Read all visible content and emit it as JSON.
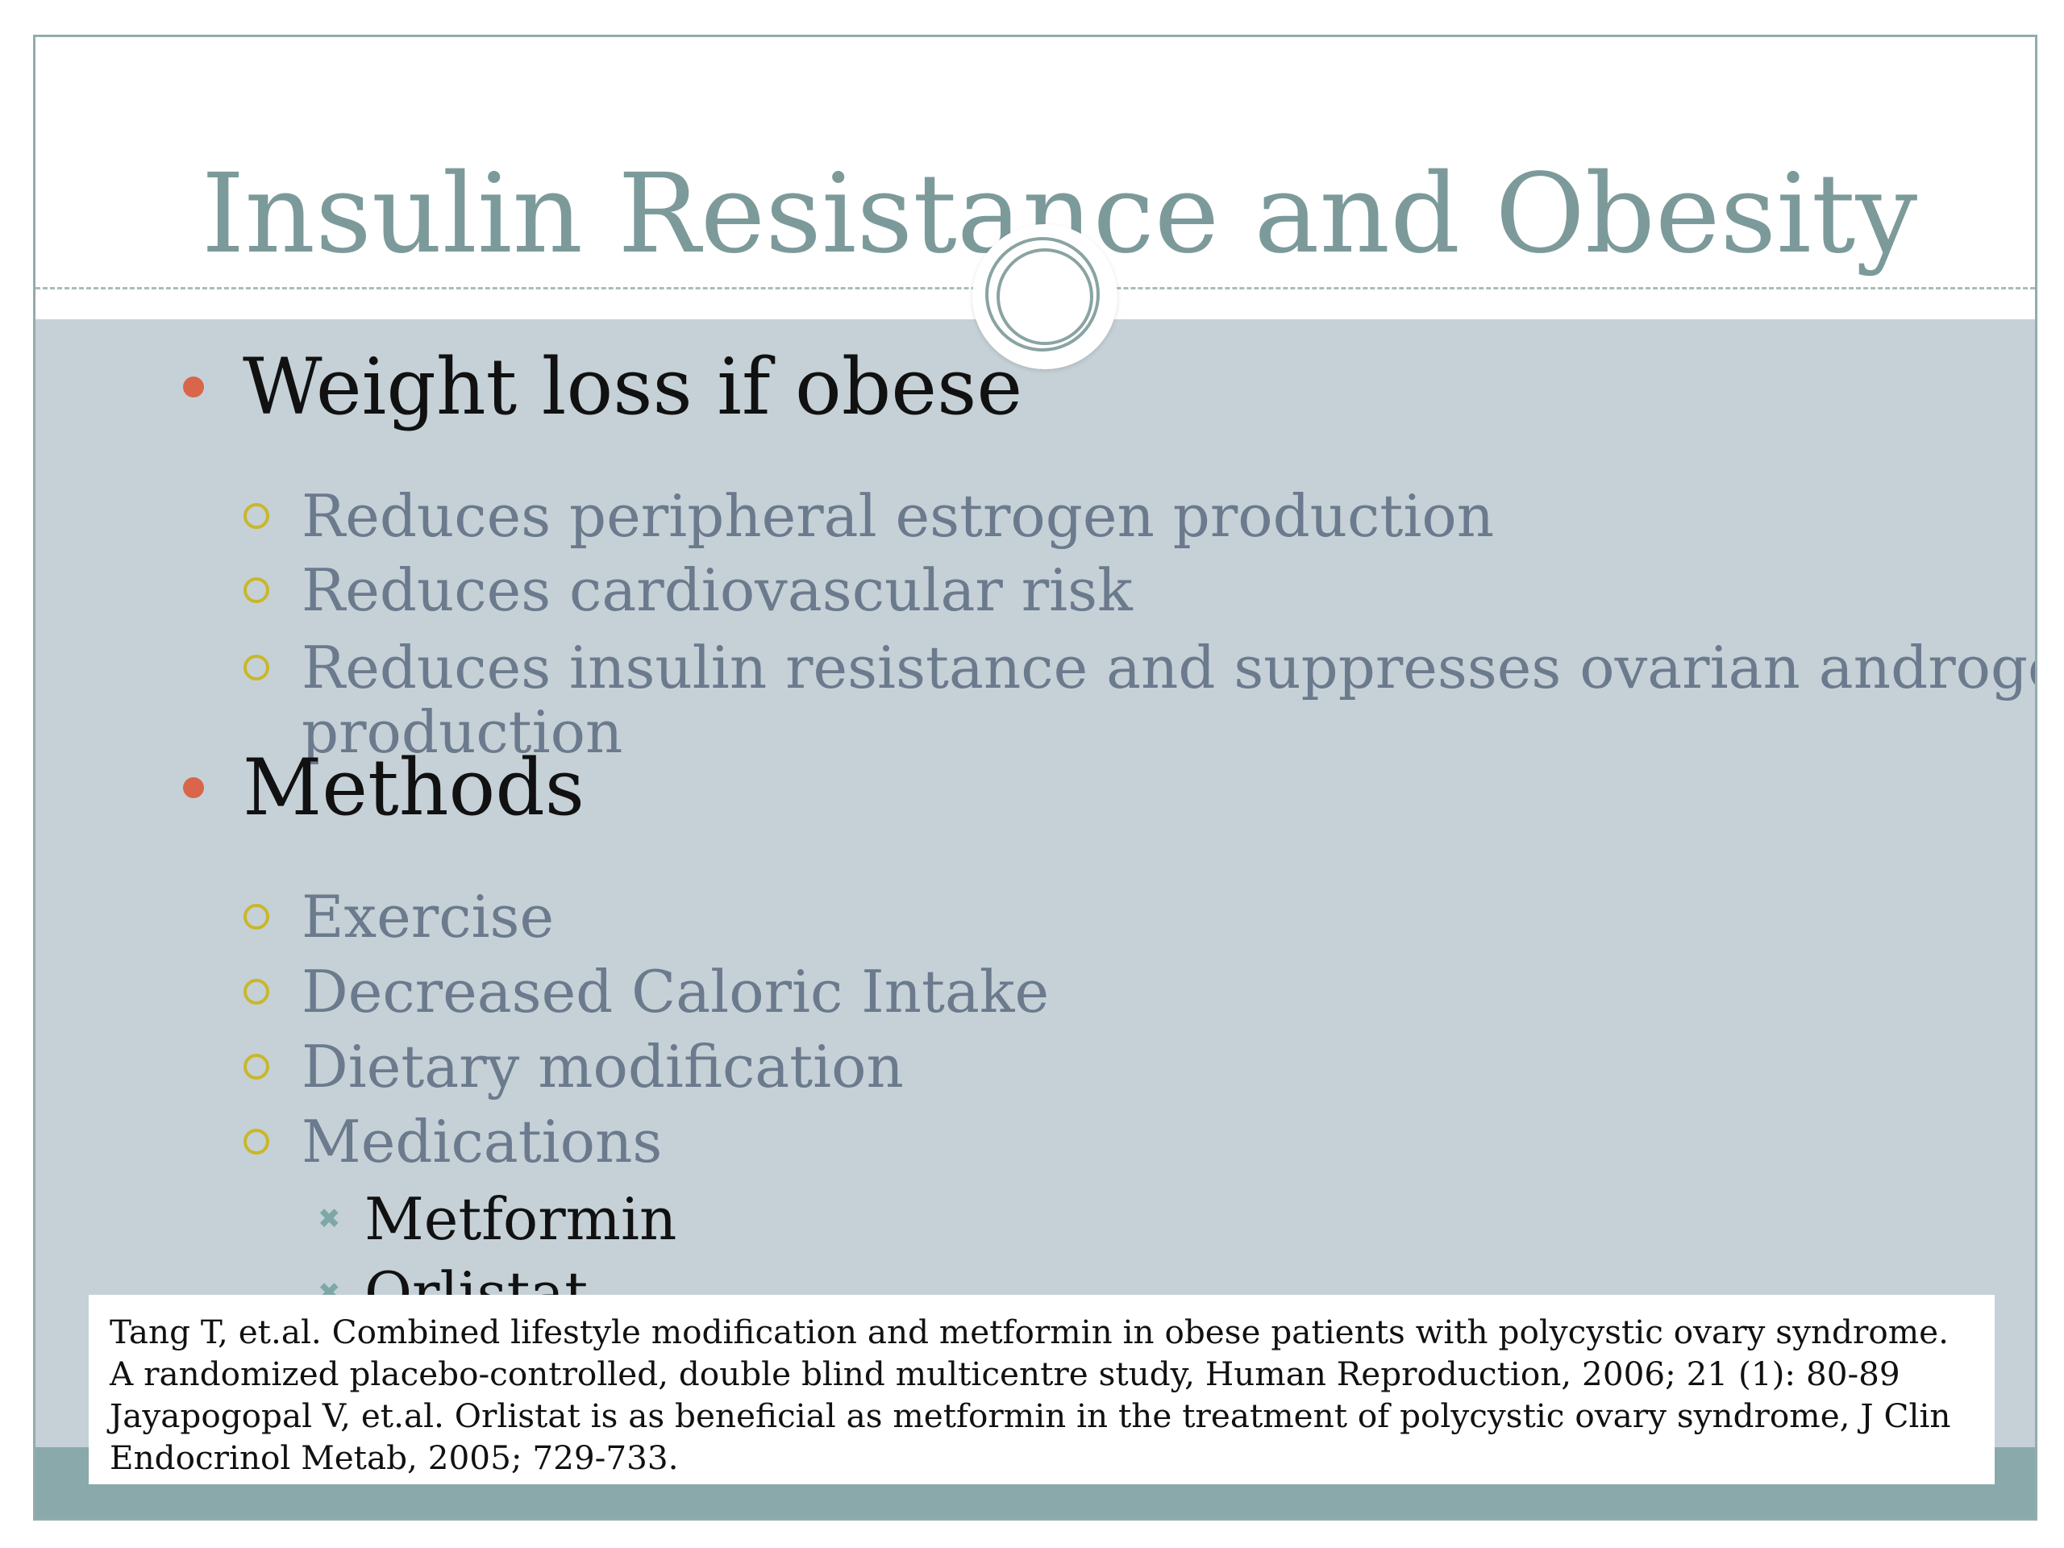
{
  "slide": {
    "title": "Insulin Resistance and Obesity",
    "bullets": [
      {
        "text": "Weight loss if obese",
        "sub": [
          "Reduces peripheral estrogen production",
          "Reduces cardiovascular risk",
          "Reduces insulin resistance and suppresses ovarian androgen",
          "production"
        ]
      },
      {
        "text": "Methods",
        "sub": [
          "Exercise",
          "Decreased Caloric Intake",
          "Dietary modification",
          "Medications"
        ],
        "subsub": [
          "Metformin",
          "Orlistat"
        ]
      }
    ],
    "references": [
      "Tang T, et.al. Combined lifestyle modification and metformin in obese patients with polycystic ovary syndrome.",
      "A randomized placebo-controlled, double blind multicentre study, Human Reproduction, 2006; 21 (1): 80-89",
      "Jayapogopal V, et.al. Orlistat is as beneficial as metformin in the treatment of polycystic ovary syndrome, J Clin",
      "Endocrinol Metab, 2005; 729-733."
    ],
    "colors": {
      "title": "#7d9a9a",
      "body_bg": "#c5d1d7",
      "bullet_level1": "#d9664a",
      "bullet_level2": "#c9b72a",
      "bottom_band": "#8aa9aa"
    }
  }
}
